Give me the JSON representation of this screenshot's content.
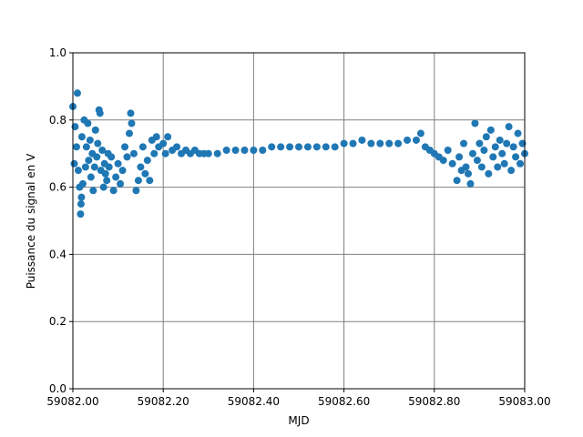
{
  "chart_data": {
    "type": "scatter",
    "xlabel": "MJD",
    "ylabel": "Puissance du signal en V",
    "color": "#1f77b4",
    "grid": true,
    "xlim": [
      59082,
      59083
    ],
    "xticks": [
      {
        "value": 59082,
        "label": "59082.00"
      },
      {
        "value": 59082.2,
        "label": "59082.20"
      },
      {
        "value": 59082.4,
        "label": "59082.40"
      },
      {
        "value": 59082.6,
        "label": "59082.60"
      },
      {
        "value": 59082.8,
        "label": "59082.80"
      },
      {
        "value": 59083,
        "label": "59083.00"
      }
    ],
    "ylim": [
      0,
      1
    ],
    "yticks": [
      {
        "value": 0,
        "label": "0.0"
      },
      0.2,
      0.4,
      0.6,
      0.8,
      {
        "value": 1,
        "label": "1.0"
      }
    ],
    "x": [
      59082.0,
      59082.003,
      59082.005,
      59082.008,
      59082.01,
      59082.012,
      59082.015,
      59082.017,
      59082.018,
      59082.019,
      59082.02,
      59082.022,
      59082.025,
      59082.028,
      59082.03,
      59082.033,
      59082.035,
      59082.038,
      59082.04,
      59082.043,
      59082.045,
      59082.048,
      59082.05,
      59082.053,
      59082.055,
      59082.058,
      59082.06,
      59082.062,
      59082.065,
      59082.068,
      59082.07,
      59082.072,
      59082.075,
      59082.078,
      59082.08,
      59082.085,
      59082.09,
      59082.095,
      59082.1,
      59082.105,
      59082.11,
      59082.115,
      59082.12,
      59082.125,
      59082.128,
      59082.13,
      59082.135,
      59082.14,
      59082.145,
      59082.15,
      59082.155,
      59082.16,
      59082.165,
      59082.17,
      59082.175,
      59082.18,
      59082.185,
      59082.19,
      59082.2,
      59082.205,
      59082.21,
      59082.22,
      59082.23,
      59082.24,
      59082.25,
      59082.26,
      59082.27,
      59082.28,
      59082.29,
      59082.3,
      59082.32,
      59082.34,
      59082.36,
      59082.38,
      59082.4,
      59082.42,
      59082.44,
      59082.46,
      59082.48,
      59082.5,
      59082.52,
      59082.54,
      59082.56,
      59082.58,
      59082.6,
      59082.62,
      59082.64,
      59082.66,
      59082.68,
      59082.7,
      59082.72,
      59082.74,
      59082.76,
      59082.77,
      59082.78,
      59082.79,
      59082.8,
      59082.81,
      59082.82,
      59082.83,
      59082.84,
      59082.85,
      59082.855,
      59082.86,
      59082.865,
      59082.87,
      59082.875,
      59082.88,
      59082.885,
      59082.89,
      59082.895,
      59082.9,
      59082.905,
      59082.91,
      59082.915,
      59082.92,
      59082.925,
      59082.93,
      59082.935,
      59082.94,
      59082.945,
      59082.95,
      59082.955,
      59082.96,
      59082.965,
      59082.97,
      59082.975,
      59082.98,
      59082.985,
      59082.99,
      59082.995,
      59083.0
    ],
    "values": [
      0.84,
      0.67,
      0.78,
      0.72,
      0.88,
      0.65,
      0.6,
      0.52,
      0.55,
      0.57,
      0.75,
      0.61,
      0.8,
      0.66,
      0.72,
      0.79,
      0.68,
      0.74,
      0.63,
      0.7,
      0.59,
      0.66,
      0.77,
      0.69,
      0.73,
      0.83,
      0.82,
      0.65,
      0.71,
      0.6,
      0.67,
      0.64,
      0.62,
      0.7,
      0.66,
      0.69,
      0.59,
      0.63,
      0.67,
      0.61,
      0.65,
      0.72,
      0.69,
      0.76,
      0.82,
      0.79,
      0.7,
      0.59,
      0.62,
      0.66,
      0.72,
      0.64,
      0.68,
      0.62,
      0.74,
      0.7,
      0.75,
      0.72,
      0.73,
      0.7,
      0.75,
      0.71,
      0.72,
      0.7,
      0.71,
      0.7,
      0.71,
      0.7,
      0.7,
      0.7,
      0.7,
      0.71,
      0.71,
      0.71,
      0.71,
      0.71,
      0.72,
      0.72,
      0.72,
      0.72,
      0.72,
      0.72,
      0.72,
      0.72,
      0.73,
      0.73,
      0.74,
      0.73,
      0.73,
      0.73,
      0.73,
      0.74,
      0.74,
      0.76,
      0.72,
      0.71,
      0.7,
      0.69,
      0.68,
      0.71,
      0.67,
      0.62,
      0.69,
      0.65,
      0.73,
      0.66,
      0.64,
      0.61,
      0.7,
      0.79,
      0.68,
      0.73,
      0.66,
      0.71,
      0.75,
      0.64,
      0.77,
      0.69,
      0.72,
      0.66,
      0.74,
      0.7,
      0.67,
      0.73,
      0.78,
      0.65,
      0.72,
      0.69,
      0.76,
      0.67,
      0.73,
      0.7
    ]
  }
}
